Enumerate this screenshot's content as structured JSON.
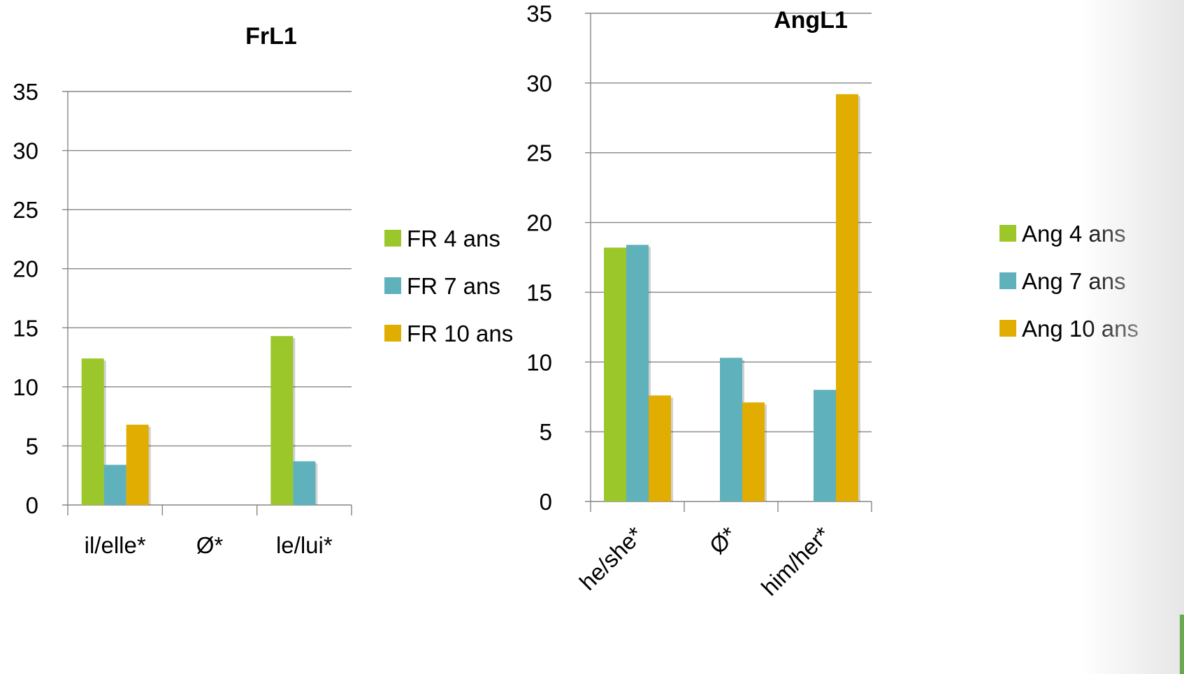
{
  "colors": {
    "FR 4 ans": "#9bc72a",
    "FR 7 ans": "#5fb1bb",
    "FR 10 ans": "#e0ad00",
    "Ang 4 ans": "#9bc72a",
    "Ang 7 ans": "#5fb1bb",
    "Ang 10 ans": "#e0ad00",
    "grid": "#868686"
  },
  "chart_data": [
    {
      "type": "bar",
      "title": "FrL1",
      "categories": [
        "il/elle*",
        "Ø*",
        "le/lui*"
      ],
      "series": [
        {
          "name": "FR 4 ans",
          "values": [
            12.4,
            0,
            14.3
          ]
        },
        {
          "name": "FR 7 ans",
          "values": [
            3.4,
            0,
            3.7
          ]
        },
        {
          "name": "FR 10 ans",
          "values": [
            6.8,
            0,
            0
          ]
        }
      ],
      "yticks": [
        "0",
        "5",
        "10",
        "15",
        "20",
        "25",
        "30",
        "35"
      ],
      "ylim": [
        0,
        35
      ],
      "grid": true,
      "legend": "right"
    },
    {
      "type": "bar",
      "title": "AngL1",
      "categories": [
        "he/she*",
        "Ø*",
        "him/her*"
      ],
      "series": [
        {
          "name": "Ang 4 ans",
          "values": [
            18.2,
            0,
            0
          ]
        },
        {
          "name": "Ang 7 ans",
          "values": [
            18.4,
            10.3,
            8.0
          ]
        },
        {
          "name": "Ang 10 ans",
          "values": [
            7.6,
            7.1,
            29.2
          ]
        }
      ],
      "yticks": [
        "0",
        "5",
        "10",
        "15",
        "20",
        "25",
        "30",
        "35"
      ],
      "ylim": [
        0,
        35
      ],
      "grid": true,
      "legend": "right"
    }
  ]
}
